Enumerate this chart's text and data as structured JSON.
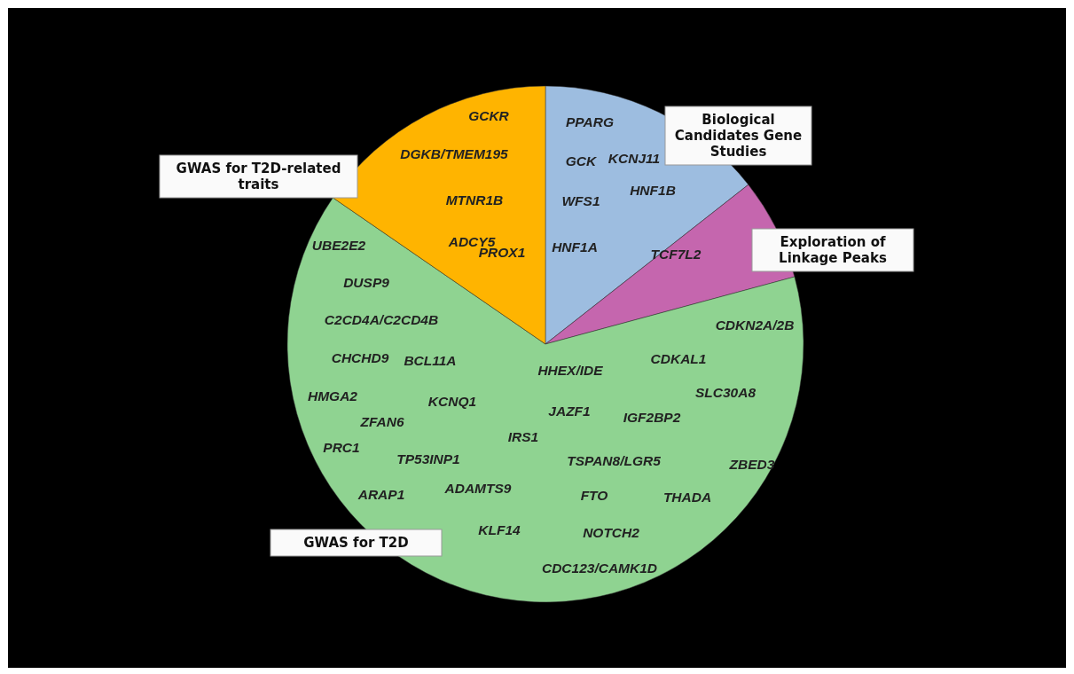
{
  "chart_data": {
    "type": "pie",
    "categories": [
      "Biological Candidates Gene Studies",
      "Exploration of Linkage Peaks",
      "GWAS for T2D",
      "GWAS for T2D-related traits"
    ],
    "values": [
      14.4,
      6.4,
      63.8,
      15.4
    ],
    "colors": [
      "#9dbde0",
      "#c566ae",
      "#8fd391",
      "#ffb400"
    ],
    "annotations": [
      "PPARG",
      "KCNJ11",
      "GCK",
      "HNF1B",
      "WFS1",
      "HNF1A",
      "TCF7L2",
      "GCKR",
      "DGKB/TMEM195",
      "MTNR1B",
      "ADCY5",
      "PROX1",
      "UBE2E2",
      "DUSP9",
      "C2CD4A/C2CD4B",
      "CHCHD9",
      "BCL11A",
      "HHEX/IDE",
      "CDKAL1",
      "CDKN2A/2B",
      "SLC30A8",
      "HMGA2",
      "KCNQ1",
      "JAZF1",
      "IGF2BP2",
      "ZFAN6",
      "IRS1",
      "PRC1",
      "TP53INP1",
      "TSPAN8/LGR5",
      "ZBED3",
      "ARAP1",
      "ADAMTS9",
      "FTO",
      "THADA",
      "KLF14",
      "NOTCH2",
      "CDC123/CAMK1D"
    ]
  }
}
